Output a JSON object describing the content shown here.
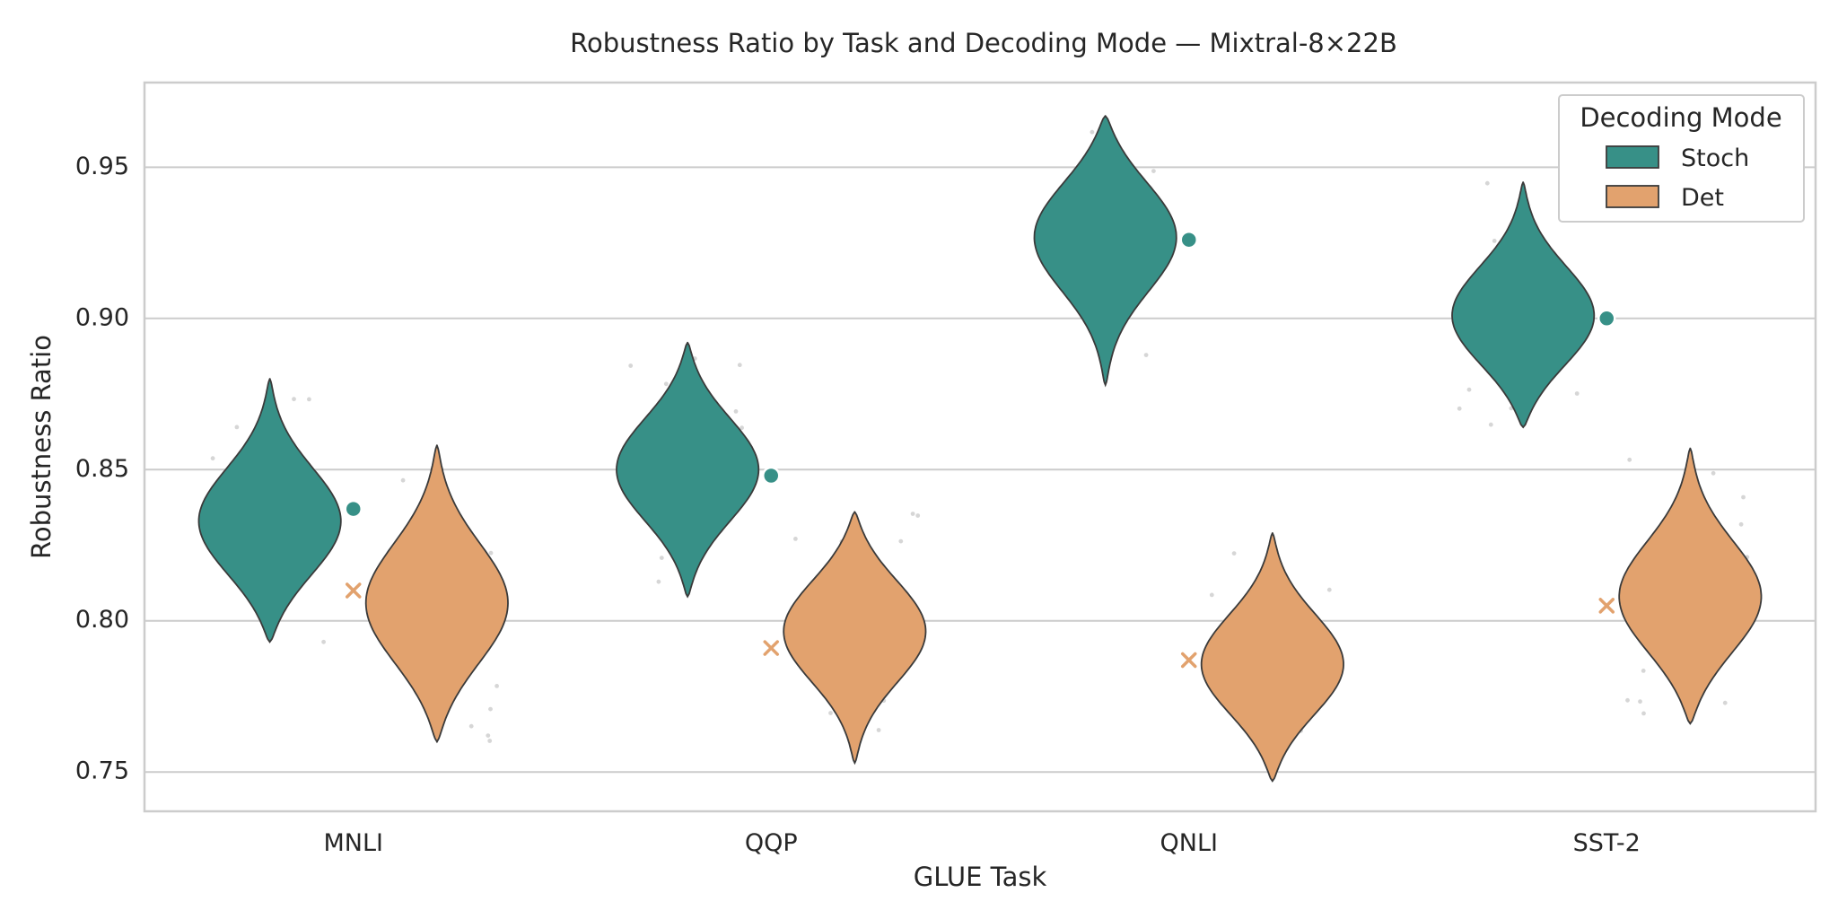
{
  "chart_data": {
    "type": "violin",
    "title": "Robustness Ratio by Task and Decoding Mode — Mixtral-8×22B",
    "xlabel": "GLUE Task",
    "ylabel": "Robustness Ratio",
    "categories": [
      "MNLI",
      "QQP",
      "QNLI",
      "SST-2"
    ],
    "ylim": [
      0.737,
      0.978
    ],
    "yticks": [
      "0.75",
      "0.80",
      "0.85",
      "0.90",
      "0.95"
    ],
    "ytick_values": [
      0.75,
      0.8,
      0.85,
      0.9,
      0.95
    ],
    "grid": true,
    "legend": {
      "title": "Decoding Mode",
      "position": "top-right"
    },
    "series": [
      {
        "name": "Stoch",
        "color": "#379087",
        "marker": "circle",
        "means": [
          0.837,
          0.848,
          0.926,
          0.9
        ],
        "distributions": [
          {
            "min": 0.793,
            "max": 0.88,
            "mode": 0.832,
            "width": 0.34
          },
          {
            "min": 0.808,
            "max": 0.892,
            "mode": 0.85,
            "width": 0.34
          },
          {
            "min": 0.878,
            "max": 0.967,
            "mode": 0.928,
            "width": 0.34
          },
          {
            "min": 0.864,
            "max": 0.945,
            "mode": 0.9,
            "width": 0.34
          }
        ]
      },
      {
        "name": "Det",
        "color": "#E2A26E",
        "marker": "x",
        "means": [
          0.81,
          0.791,
          0.787,
          0.805
        ],
        "distributions": [
          {
            "min": 0.76,
            "max": 0.858,
            "mode": 0.805,
            "width": 0.34
          },
          {
            "min": 0.753,
            "max": 0.836,
            "mode": 0.797,
            "width": 0.34
          },
          {
            "min": 0.747,
            "max": 0.829,
            "mode": 0.785,
            "width": 0.34
          },
          {
            "min": 0.766,
            "max": 0.857,
            "mode": 0.807,
            "width": 0.34
          }
        ]
      }
    ]
  }
}
